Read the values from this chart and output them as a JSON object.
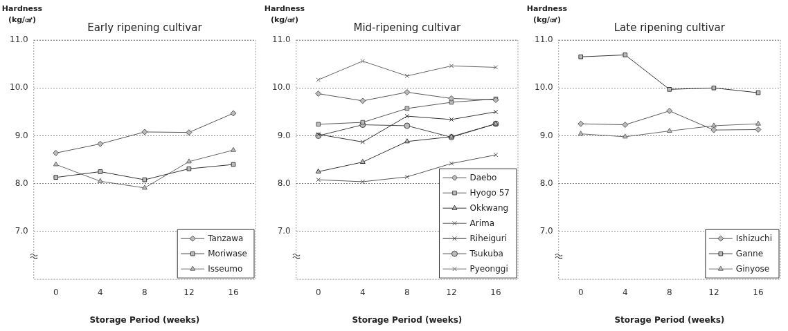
{
  "chart_data": [
    {
      "type": "line",
      "title": "Early ripening cultivar",
      "xlabel": "Storage Period (weeks)",
      "ylabel": "Hardness (kg/㎠)",
      "categories": [
        "0",
        "4",
        "8",
        "12",
        "16"
      ],
      "ylim": [
        6,
        11
      ],
      "yticks": [
        {
          "value": 7,
          "label": "7.0"
        },
        {
          "value": 8,
          "label": "8.0"
        },
        {
          "value": 9,
          "label": "9.0"
        },
        {
          "value": 10,
          "label": "10.0"
        },
        {
          "value": 11,
          "label": "11.0"
        }
      ],
      "grid": "y",
      "legend": "bottom right",
      "series": [
        {
          "name": "Tanzawa",
          "color": "#555555",
          "marker": "diamond",
          "values": [
            8.64,
            8.83,
            9.08,
            9.07,
            9.47
          ]
        },
        {
          "name": "Moriwase",
          "color": "#333333",
          "marker": "square",
          "values": [
            8.13,
            8.25,
            8.08,
            8.31,
            8.4
          ]
        },
        {
          "name": "Isseumo",
          "color": "#666666",
          "marker": "triangle",
          "values": [
            8.4,
            8.05,
            7.91,
            8.46,
            8.7
          ]
        }
      ]
    },
    {
      "type": "line",
      "title": "Mid-ripening cultivar",
      "xlabel": "Storage Period (weeks)",
      "ylabel": "Hardness (kg/㎠)",
      "categories": [
        "0",
        "4",
        "8",
        "12",
        "16"
      ],
      "ylim": [
        6,
        11
      ],
      "yticks": [
        {
          "value": 7,
          "label": "7.0"
        },
        {
          "value": 8,
          "label": "8.0"
        },
        {
          "value": 9,
          "label": "9.0"
        },
        {
          "value": 10,
          "label": "10.0"
        },
        {
          "value": 11,
          "label": "11.0"
        }
      ],
      "grid": "y",
      "legend": "bottom right",
      "series": [
        {
          "name": "Daebo",
          "color": "#555555",
          "marker": "diamond",
          "values": [
            9.88,
            9.73,
            9.91,
            9.78,
            9.75
          ]
        },
        {
          "name": "Hyogo 57",
          "color": "#555555",
          "marker": "square",
          "values": [
            9.24,
            9.28,
            9.57,
            9.7,
            9.77
          ]
        },
        {
          "name": "Okkwang",
          "color": "#333333",
          "marker": "triangle",
          "values": [
            8.25,
            8.45,
            8.88,
            8.98,
            9.25
          ]
        },
        {
          "name": "Arima",
          "color": "#555555",
          "marker": "cross",
          "values": [
            8.08,
            8.04,
            8.14,
            8.42,
            8.6
          ]
        },
        {
          "name": "Riheiguri",
          "color": "#333333",
          "marker": "cross",
          "values": [
            9.03,
            8.87,
            9.41,
            9.34,
            9.5
          ]
        },
        {
          "name": "Tsukuba",
          "color": "#444444",
          "marker": "circle",
          "values": [
            9.0,
            9.23,
            9.21,
            8.97,
            9.25
          ]
        },
        {
          "name": "Pyeonggi",
          "color": "#666666",
          "marker": "cross",
          "values": [
            10.17,
            10.56,
            10.25,
            10.46,
            10.43
          ]
        }
      ]
    },
    {
      "type": "line",
      "title": "Late ripening cultivar",
      "xlabel": "Storage Period (weeks)",
      "ylabel": "Hardness (kg/㎠)",
      "categories": [
        "0",
        "4",
        "8",
        "12",
        "16"
      ],
      "ylim": [
        6,
        11
      ],
      "yticks": [
        {
          "value": 7,
          "label": "7.0"
        },
        {
          "value": 8,
          "label": "8.0"
        },
        {
          "value": 9,
          "label": "9.0"
        },
        {
          "value": 10,
          "label": "10.0"
        },
        {
          "value": 11,
          "label": "11.0"
        }
      ],
      "grid": "y",
      "legend": "bottom right",
      "series": [
        {
          "name": "Ishizuchi",
          "color": "#555555",
          "marker": "diamond",
          "values": [
            9.25,
            9.23,
            9.52,
            9.12,
            9.13
          ]
        },
        {
          "name": "Ganne",
          "color": "#333333",
          "marker": "square",
          "values": [
            10.65,
            10.69,
            9.97,
            10.0,
            9.9
          ]
        },
        {
          "name": "Ginyose",
          "color": "#666666",
          "marker": "triangle",
          "values": [
            9.04,
            8.98,
            9.1,
            9.21,
            9.25
          ]
        }
      ]
    }
  ]
}
